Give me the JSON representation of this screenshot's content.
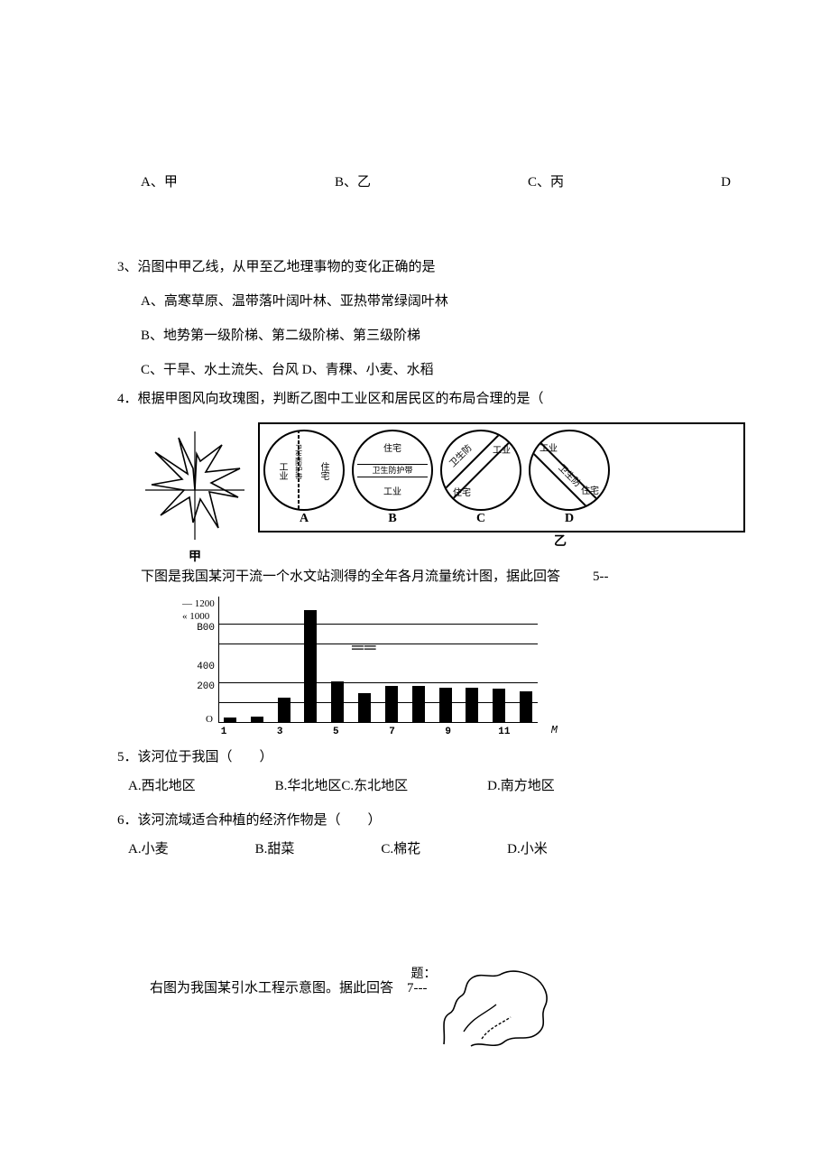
{
  "colors": {
    "text": "#000000",
    "background": "#ffffff",
    "bar_fill": "#000000",
    "gridline": "#000000",
    "circle_border": "#000000"
  },
  "q2_opts": {
    "a": "A、甲",
    "b": "B、乙",
    "c": "C、丙",
    "d": "D"
  },
  "q3": {
    "stem": "3、沿图中甲乙线，从甲至乙地理事物的变化正确的是",
    "a": "A、高寒草原、温带落叶阔叶林、亚热带常绿阔叶林",
    "b": "B、地势第一级阶梯、第二级阶梯、第三级阶梯",
    "c": "C、干旱、水土流失、台风 D、青稞、小麦、水稻"
  },
  "q4": {
    "stem": "4．根据甲图风向玫瑰图，判断乙图中工业区和居民区的布局合理的是（",
    "windrose_label": "甲",
    "panel_label": "乙",
    "labels_abcd": [
      "A",
      "B",
      "C",
      "D"
    ],
    "circleA_left": "工业",
    "circleA_mid": "卫生防护带",
    "circleA_right": "住宅",
    "circleB_top": "住宅",
    "circleB_mid": "卫生防护带",
    "circleB_bot": "工业",
    "circleC_nw": "卫生防",
    "circleC_ne": "工业",
    "circleC_sw": "住宅",
    "circleD_nw": "工业",
    "circleD_mid": "卫生防",
    "circleD_se": "住宅"
  },
  "fig56": {
    "intro_prefix": "下图是我国某河干流一个水文站测得的全年各月流量统计图，据此回答",
    "intro_suffix": "5--",
    "chart": {
      "type": "bar",
      "y_top1": "— 1200",
      "y_top2": "« 1000",
      "y_ticks": [
        {
          "label": "B00",
          "value": 800
        },
        {
          "label": "400",
          "value": 400
        },
        {
          "label": "200",
          "value": 200
        }
      ],
      "y_max": 1200,
      "bars": [
        50,
        60,
        260,
        1150,
        420,
        300,
        380,
        380,
        360,
        360,
        350,
        320
      ],
      "bar_color": "#000000",
      "grid_color": "#000000",
      "x_tick_labels": [
        "1",
        "3",
        "5",
        "7",
        "9",
        "11"
      ],
      "origin_label": "O",
      "x_axis_symbol": "M",
      "legend_mark": "══"
    }
  },
  "q5": {
    "stem": "5．该河位于我国（　　）",
    "a": "A.西北地区",
    "bc": "B.华北地区C.东北地区",
    "d": "D.南方地区"
  },
  "q6": {
    "stem": "6．该河流域适合种植的经济作物是（　　）",
    "a": "A.小麦",
    "b": "B.甜菜",
    "c": "C.棉花",
    "d": "D.小米"
  },
  "q7": {
    "text": "右图为我国某引水工程示意图。据此回答　7---",
    "map_label": "题："
  }
}
